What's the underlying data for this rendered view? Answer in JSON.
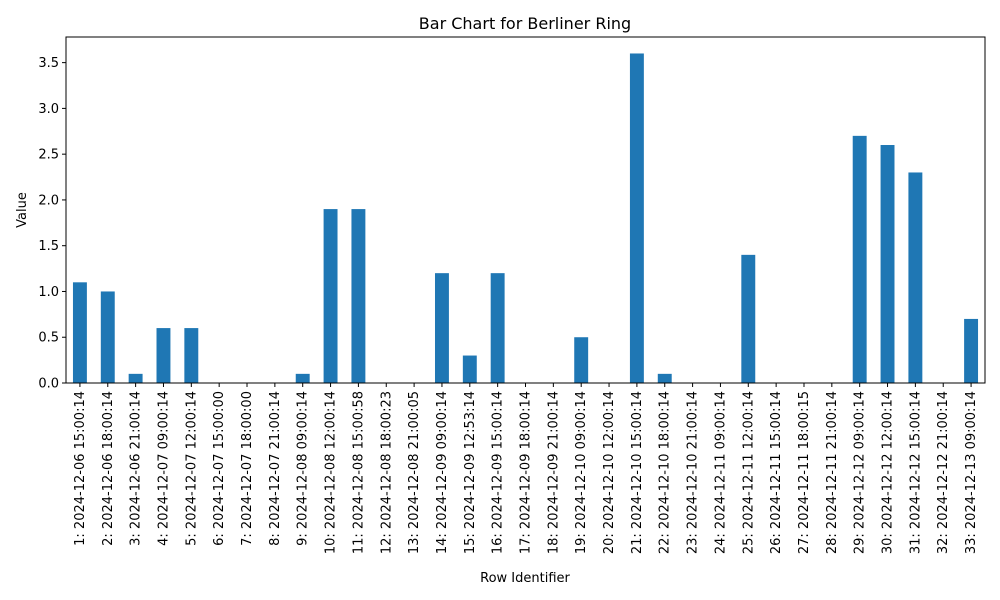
{
  "chart_data": {
    "type": "bar",
    "title": "Bar Chart for Berliner Ring",
    "xlabel": "Row Identifier",
    "ylabel": "Value",
    "ylim": [
      0,
      3.78
    ],
    "yticks": [
      "0.0",
      "0.5",
      "1.0",
      "1.5",
      "2.0",
      "2.5",
      "3.0",
      "3.5"
    ],
    "grid": false,
    "bar_color": "#1f77b4",
    "categories": [
      "1: 2024-12-06 15:00:14",
      "2: 2024-12-06 18:00:14",
      "3: 2024-12-06 21:00:14",
      "4: 2024-12-07 09:00:14",
      "5: 2024-12-07 12:00:14",
      "6: 2024-12-07 15:00:00",
      "7: 2024-12-07 18:00:00",
      "8: 2024-12-07 21:00:14",
      "9: 2024-12-08 09:00:14",
      "10: 2024-12-08 12:00:14",
      "11: 2024-12-08 15:00:58",
      "12: 2024-12-08 18:00:23",
      "13: 2024-12-08 21:00:05",
      "14: 2024-12-09 09:00:14",
      "15: 2024-12-09 12:53:14",
      "16: 2024-12-09 15:00:14",
      "17: 2024-12-09 18:00:14",
      "18: 2024-12-09 21:00:14",
      "19: 2024-12-10 09:00:14",
      "20: 2024-12-10 12:00:14",
      "21: 2024-12-10 15:00:14",
      "22: 2024-12-10 18:00:14",
      "23: 2024-12-10 21:00:14",
      "24: 2024-12-11 09:00:14",
      "25: 2024-12-11 12:00:14",
      "26: 2024-12-11 15:00:14",
      "27: 2024-12-11 18:00:15",
      "28: 2024-12-11 21:00:14",
      "29: 2024-12-12 09:00:14",
      "30: 2024-12-12 12:00:14",
      "31: 2024-12-12 15:00:14",
      "32: 2024-12-12 21:00:14",
      "33: 2024-12-13 09:00:14"
    ],
    "values": [
      1.1,
      1.0,
      0.1,
      0.6,
      0.6,
      0.0,
      0.0,
      0.0,
      0.1,
      1.9,
      1.9,
      0.0,
      0.0,
      1.2,
      0.3,
      1.2,
      0.0,
      0.0,
      0.5,
      0.0,
      3.6,
      0.1,
      0.0,
      0.0,
      1.4,
      0.0,
      0.0,
      0.0,
      2.7,
      2.6,
      2.3,
      0.0,
      0.7
    ]
  }
}
